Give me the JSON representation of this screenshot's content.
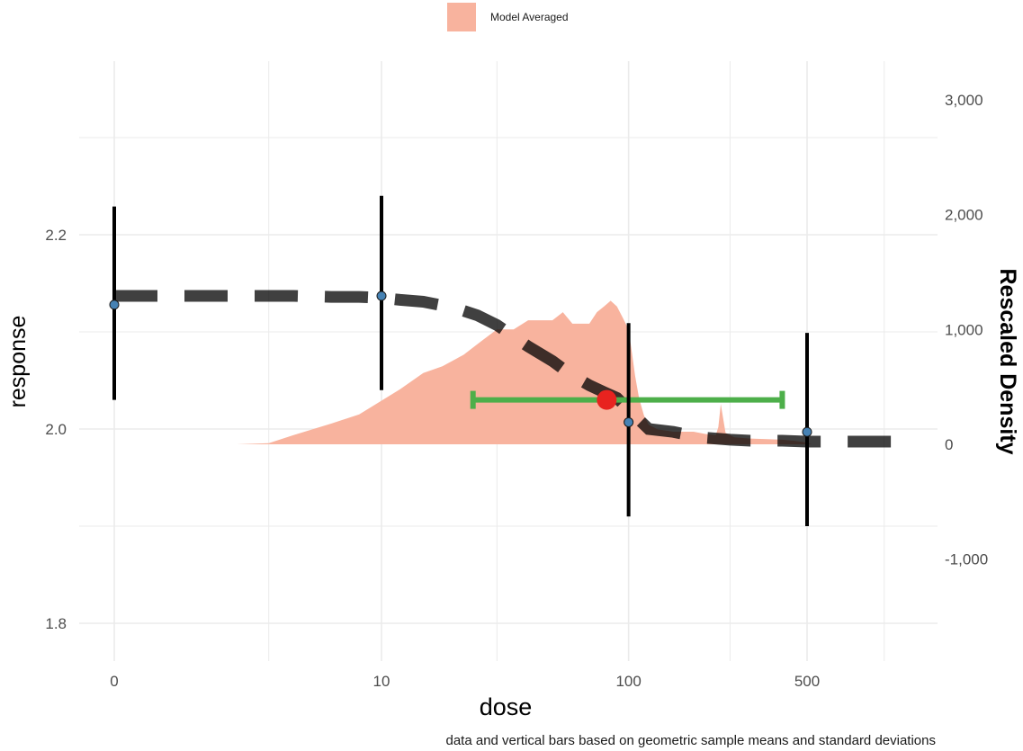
{
  "chart_data": {
    "type": "area",
    "xlabel": "dose",
    "ylabel": "response",
    "y2label": "Rescaled Density",
    "caption": "data and vertical bars based on geometric sample means and standard deviations",
    "x_scale": "log1p",
    "x_ticks": [
      0,
      10,
      100,
      500
    ],
    "x_tick_labels": [
      "0",
      "10",
      "100",
      "500"
    ],
    "xlim": [
      -0.5,
      1200
    ],
    "y_ticks": [
      1.8,
      2.0,
      2.2
    ],
    "y_tick_labels": [
      "1.8",
      "2.0",
      "2.2"
    ],
    "ylim": [
      1.75,
      2.33
    ],
    "y2_ticks": [
      -1000,
      0,
      1000,
      2000,
      3000
    ],
    "y2_tick_labels": [
      "-1,000",
      "0",
      "1,000",
      "2,000",
      "3,000"
    ],
    "legend": {
      "position": "top",
      "entries": [
        {
          "label": "Model Averaged",
          "color": "#f8b39e"
        }
      ]
    },
    "density": {
      "name": "Model Averaged",
      "color": "#f8b39e",
      "x": [
        -0.5,
        0,
        2,
        3,
        4,
        6,
        8,
        10,
        12,
        15,
        18,
        22,
        26,
        30,
        35,
        40,
        45,
        50,
        55,
        60,
        65,
        70,
        75,
        80,
        85,
        90,
        95,
        100,
        103,
        106,
        110,
        115,
        120,
        130,
        150,
        180,
        200,
        220,
        225,
        230,
        240,
        260,
        300,
        350,
        400,
        450,
        500,
        520
      ],
      "y": [
        0,
        0,
        0,
        10,
        80,
        180,
        260,
        380,
        480,
        620,
        680,
        780,
        900,
        1000,
        1000,
        1080,
        1080,
        1080,
        1150,
        1050,
        1050,
        1050,
        1150,
        1200,
        1250,
        1200,
        1100,
        1000,
        800,
        600,
        400,
        250,
        170,
        130,
        110,
        110,
        90,
        80,
        150,
        350,
        100,
        60,
        50,
        45,
        40,
        30,
        15,
        0
      ]
    },
    "model_curve": {
      "x": [
        0,
        1,
        2,
        3,
        4,
        6,
        8,
        10,
        12,
        15,
        20,
        25,
        30,
        40,
        50,
        60,
        70,
        80,
        90,
        100,
        120,
        150,
        180,
        200,
        250,
        300,
        400,
        500,
        700,
        900,
        1200
      ],
      "y": [
        2.137,
        2.137,
        2.137,
        2.137,
        2.137,
        2.136,
        2.136,
        2.135,
        2.133,
        2.131,
        2.125,
        2.117,
        2.107,
        2.085,
        2.07,
        2.055,
        2.045,
        2.038,
        2.032,
        2.02,
        2.0,
        1.997,
        1.993,
        1.991,
        1.989,
        1.988,
        1.988,
        1.987,
        1.987,
        1.987,
        1.987
      ]
    },
    "observations": [
      {
        "dose": 0,
        "mean": 2.128,
        "lower": 2.03,
        "upper": 2.229
      },
      {
        "dose": 10,
        "mean": 2.137,
        "lower": 2.04,
        "upper": 2.24
      },
      {
        "dose": 100,
        "mean": 2.007,
        "lower": 1.91,
        "upper": 2.109
      },
      {
        "dose": 500,
        "mean": 1.997,
        "lower": 1.9,
        "upper": 2.099
      }
    ],
    "bmd": {
      "estimate": 82,
      "lower": 24,
      "upper": 400,
      "response": 2.03
    },
    "colors": {
      "density": "#f8b39e",
      "curve": "#000000",
      "points": "#4682b4",
      "bmd_point": "#e8231f",
      "bmd_interval": "#4daf4a",
      "grid": "#ebebeb"
    }
  }
}
